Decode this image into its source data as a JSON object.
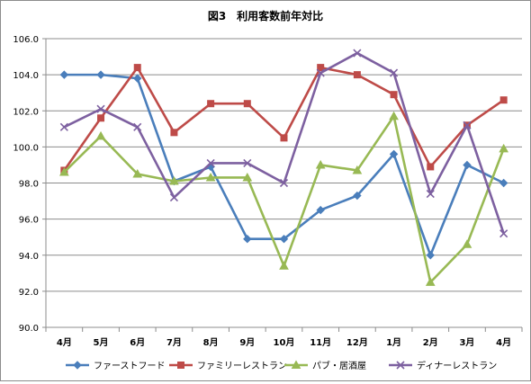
{
  "chart_data": {
    "type": "line",
    "title": "図3　利用客数前年対比",
    "xlabel": "",
    "ylabel": "",
    "categories": [
      "4月",
      "5月",
      "6月",
      "7月",
      "8月",
      "9月",
      "10月",
      "11月",
      "12月",
      "1月",
      "2月",
      "3月",
      "4月"
    ],
    "ylim": [
      90.0,
      106.0
    ],
    "yticks": [
      "90.0",
      "92.0",
      "94.0",
      "96.0",
      "98.0",
      "100.0",
      "102.0",
      "104.0",
      "106.0"
    ],
    "grid": "horizontal",
    "legend_position": "bottom",
    "series": [
      {
        "name": "ファーストフード",
        "color": "#4a7ebb",
        "marker": "diamond",
        "values": [
          104.0,
          104.0,
          103.8,
          98.1,
          98.9,
          94.9,
          94.9,
          96.5,
          97.3,
          99.6,
          94.0,
          99.0,
          98.0
        ]
      },
      {
        "name": "ファミリーレストラン",
        "color": "#be4b48",
        "marker": "square",
        "values": [
          98.7,
          101.6,
          104.4,
          100.8,
          102.4,
          102.4,
          100.5,
          104.4,
          104.0,
          102.9,
          98.9,
          101.2,
          102.6
        ]
      },
      {
        "name": "パブ・居酒屋",
        "color": "#98b954",
        "marker": "triangle",
        "values": [
          98.6,
          100.6,
          98.5,
          98.1,
          98.3,
          98.3,
          93.4,
          99.0,
          98.7,
          101.7,
          92.5,
          94.6,
          99.9
        ]
      },
      {
        "name": "ディナーレストラン",
        "color": "#7d60a0",
        "marker": "x",
        "values": [
          101.1,
          102.1,
          101.1,
          97.2,
          99.1,
          99.1,
          98.0,
          104.1,
          105.2,
          104.1,
          97.4,
          101.2,
          95.2
        ]
      }
    ]
  }
}
